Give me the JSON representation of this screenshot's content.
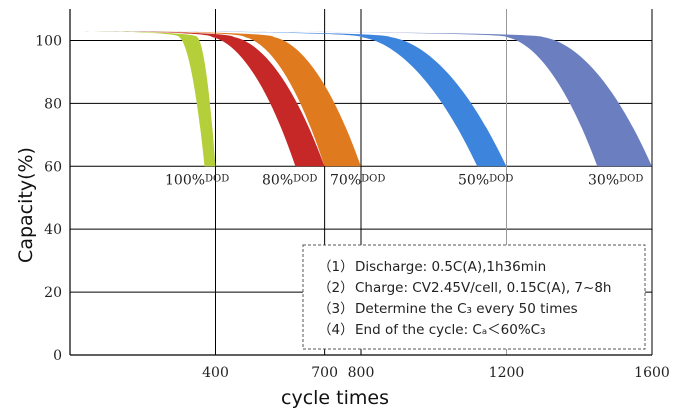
{
  "chart_data": {
    "type": "area",
    "xlabel": "cycle times",
    "ylabel": "Capacity(%)",
    "xlim": [
      0,
      1600
    ],
    "ylim": [
      0,
      110
    ],
    "x_ticks": [
      {
        "value": 400,
        "label": "400"
      },
      {
        "value": 700,
        "label": "700"
      },
      {
        "value": 800,
        "label": "800"
      },
      {
        "value": 1200,
        "label": "1200"
      },
      {
        "value": 1600,
        "label": "1600"
      }
    ],
    "y_ticks": [
      {
        "value": 0,
        "label": "0"
      },
      {
        "value": 20,
        "label": "20"
      },
      {
        "value": 40,
        "label": "40"
      },
      {
        "value": 60,
        "label": "60"
      },
      {
        "value": 80,
        "label": "80"
      },
      {
        "value": 100,
        "label": "100"
      }
    ],
    "grid": true,
    "series": [
      {
        "name": "100%DOD",
        "label_num": "100%",
        "label_suffix": "DOD",
        "color": "#b5cf3a",
        "start_capacity": 103,
        "end_capacity": 60,
        "band_start_cycle": [
          300,
          350
        ],
        "band_end_cycle": [
          370,
          400
        ]
      },
      {
        "name": "80%DOD",
        "label_num": "80%",
        "label_suffix": "DOD",
        "color": "#c62828",
        "start_capacity": 103,
        "end_capacity": 60,
        "band_start_cycle": [
          390,
          450
        ],
        "band_end_cycle": [
          620,
          700
        ]
      },
      {
        "name": "70%DOD",
        "label_num": "70%",
        "label_suffix": "DOD",
        "color": "#e07a1f",
        "start_capacity": 103,
        "end_capacity": 60,
        "band_start_cycle": [
          480,
          560
        ],
        "band_end_cycle": [
          700,
          800
        ]
      },
      {
        "name": "50%DOD",
        "label_num": "50%",
        "label_suffix": "DOD",
        "color": "#3d84dc",
        "start_capacity": 103,
        "end_capacity": 60,
        "band_start_cycle": [
          800,
          880
        ],
        "band_end_cycle": [
          1120,
          1200
        ]
      },
      {
        "name": "30%DOD",
        "label_num": "30%",
        "label_suffix": "DOD",
        "color": "#6b7fc0",
        "start_capacity": 103,
        "end_capacity": 60,
        "band_start_cycle": [
          1200,
          1300
        ],
        "band_end_cycle": [
          1450,
          1600
        ]
      }
    ],
    "notes": [
      {
        "num": "（1）",
        "text": "Discharge: 0.5C(A),1h36min"
      },
      {
        "num": "（2）",
        "text": "Charge: CV2.45V/cell, 0.15C(A), 7~8h"
      },
      {
        "num": "（3）",
        "text": "Determine the C₃ every 50 times"
      },
      {
        "num": "（4）",
        "text": "End of the cycle: Cₐ＜60%C₃"
      }
    ]
  }
}
